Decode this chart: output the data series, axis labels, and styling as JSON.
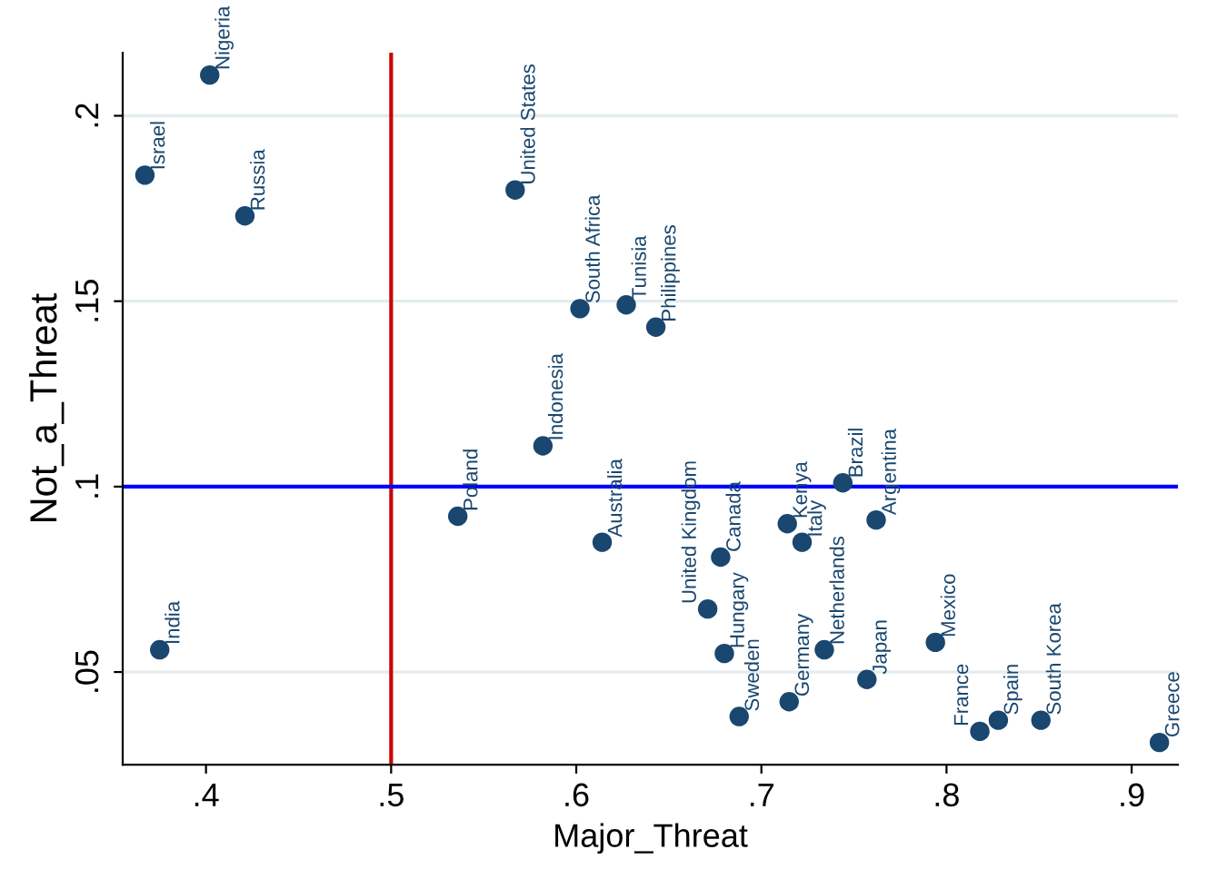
{
  "chart_data": {
    "type": "scatter",
    "xlabel": "Major_Threat",
    "ylabel": "Not_a_Threat",
    "xlim": [
      0.355,
      0.925
    ],
    "ylim": [
      0.025,
      0.217
    ],
    "xticks": [
      {
        "value": 0.4,
        "label": ".4"
      },
      {
        "value": 0.5,
        "label": ".5"
      },
      {
        "value": 0.6,
        "label": ".6"
      },
      {
        "value": 0.7,
        "label": ".7"
      },
      {
        "value": 0.8,
        "label": ".8"
      },
      {
        "value": 0.9,
        "label": ".9"
      }
    ],
    "yticks": [
      {
        "value": 0.05,
        "label": ".05"
      },
      {
        "value": 0.1,
        "label": ".1"
      },
      {
        "value": 0.15,
        "label": ".15"
      },
      {
        "value": 0.2,
        "label": ".2"
      }
    ],
    "grid": "y",
    "marker": "circle",
    "legend": false,
    "series": [
      {
        "color": "#1a476f",
        "x": [
          0.402,
          0.367,
          0.421,
          0.567,
          0.602,
          0.627,
          0.643,
          0.582,
          0.536,
          0.614,
          0.375,
          0.678,
          0.671,
          0.68,
          0.714,
          0.722,
          0.744,
          0.762,
          0.734,
          0.715,
          0.688,
          0.757,
          0.794,
          0.818,
          0.828,
          0.851,
          0.915
        ],
        "values": [
          0.211,
          0.184,
          0.173,
          0.18,
          0.148,
          0.149,
          0.143,
          0.111,
          0.092,
          0.085,
          0.056,
          0.081,
          0.067,
          0.055,
          0.09,
          0.085,
          0.101,
          0.091,
          0.056,
          0.042,
          0.038,
          0.048,
          0.058,
          0.034,
          0.037,
          0.037,
          0.031
        ]
      }
    ],
    "ref_lines": [
      {
        "axis": "x",
        "value": 0.5,
        "color": "#cc0000"
      },
      {
        "axis": "y",
        "value": 0.1,
        "color": "#0000ff"
      }
    ],
    "annotations": [
      {
        "text": "Nigeria",
        "x": 0.402,
        "y": 0.211
      },
      {
        "text": "Israel",
        "x": 0.367,
        "y": 0.184
      },
      {
        "text": "Russia",
        "x": 0.421,
        "y": 0.173
      },
      {
        "text": "United States",
        "x": 0.567,
        "y": 0.18
      },
      {
        "text": "South Africa",
        "x": 0.602,
        "y": 0.148
      },
      {
        "text": "Tunisia",
        "x": 0.627,
        "y": 0.149
      },
      {
        "text": "Philippines",
        "x": 0.643,
        "y": 0.143
      },
      {
        "text": "Indonesia",
        "x": 0.582,
        "y": 0.111
      },
      {
        "text": "Poland",
        "x": 0.536,
        "y": 0.092
      },
      {
        "text": "Australia",
        "x": 0.614,
        "y": 0.085
      },
      {
        "text": "India",
        "x": 0.375,
        "y": 0.056
      },
      {
        "text": "Canada",
        "x": 0.678,
        "y": 0.081
      },
      {
        "text": "United Kingdom",
        "x": 0.671,
        "y": 0.067
      },
      {
        "text": "Hungary",
        "x": 0.68,
        "y": 0.055
      },
      {
        "text": "Kenya",
        "x": 0.714,
        "y": 0.09
      },
      {
        "text": "Italy",
        "x": 0.722,
        "y": 0.085
      },
      {
        "text": "Brazil",
        "x": 0.744,
        "y": 0.101
      },
      {
        "text": "Argentina",
        "x": 0.762,
        "y": 0.091
      },
      {
        "text": "Netherlands",
        "x": 0.734,
        "y": 0.056
      },
      {
        "text": "Germany",
        "x": 0.715,
        "y": 0.042
      },
      {
        "text": "Sweden",
        "x": 0.688,
        "y": 0.038
      },
      {
        "text": "Japan",
        "x": 0.757,
        "y": 0.048
      },
      {
        "text": "Mexico",
        "x": 0.794,
        "y": 0.058
      },
      {
        "text": "France",
        "x": 0.818,
        "y": 0.034
      },
      {
        "text": "Spain",
        "x": 0.828,
        "y": 0.037
      },
      {
        "text": "South Korea",
        "x": 0.851,
        "y": 0.037
      },
      {
        "text": "Greece",
        "x": 0.915,
        "y": 0.031
      }
    ]
  }
}
